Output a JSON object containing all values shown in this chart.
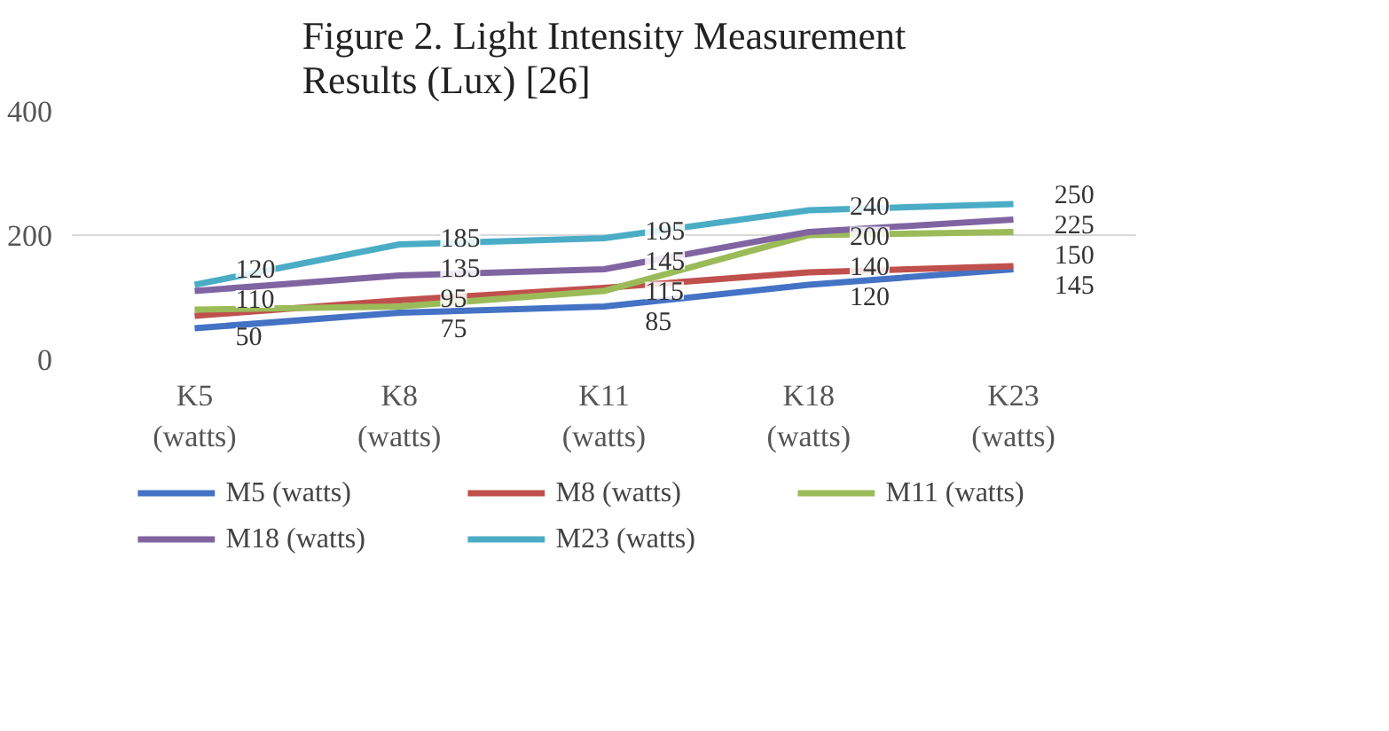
{
  "chart_data": {
    "type": "line",
    "title": "Figure 2. Light Intensity Measurement Results (Lux) [26]",
    "categories": [
      "K5 (watts)",
      "K8 (watts)",
      "K11 (watts)",
      "K18 (watts)",
      "K23 (watts)"
    ],
    "series": [
      {
        "name": "M5 (watts)",
        "color": "#4472c4",
        "values": [
          50,
          75,
          85,
          120,
          145
        ],
        "value_labels": [
          "50",
          "75",
          "85",
          "120",
          "145"
        ]
      },
      {
        "name": "M8 (watts)",
        "color": "#c0504d",
        "values": [
          70,
          95,
          115,
          140,
          150
        ],
        "value_labels": [
          null,
          "95",
          "115",
          "140",
          "150"
        ]
      },
      {
        "name": "M11 (watts)",
        "color": "#9bbb59",
        "values": [
          80,
          85,
          110,
          200,
          205
        ],
        "value_labels": [
          null,
          null,
          null,
          "200",
          null
        ]
      },
      {
        "name": "M18 (watts)",
        "color": "#8064a2",
        "values": [
          110,
          135,
          145,
          205,
          225
        ],
        "value_labels": [
          "110",
          "135",
          "145",
          null,
          "225"
        ]
      },
      {
        "name": "M23 (watts)",
        "color": "#4bacc6",
        "values": [
          120,
          185,
          195,
          240,
          250
        ],
        "value_labels": [
          "120",
          "185",
          "195",
          "240",
          "250"
        ]
      }
    ],
    "ylim": [
      0,
      400
    ],
    "yticks": [
      0,
      200,
      400
    ],
    "grid": "y",
    "legend": "bottom",
    "marker": "none",
    "line_style": "solid"
  }
}
